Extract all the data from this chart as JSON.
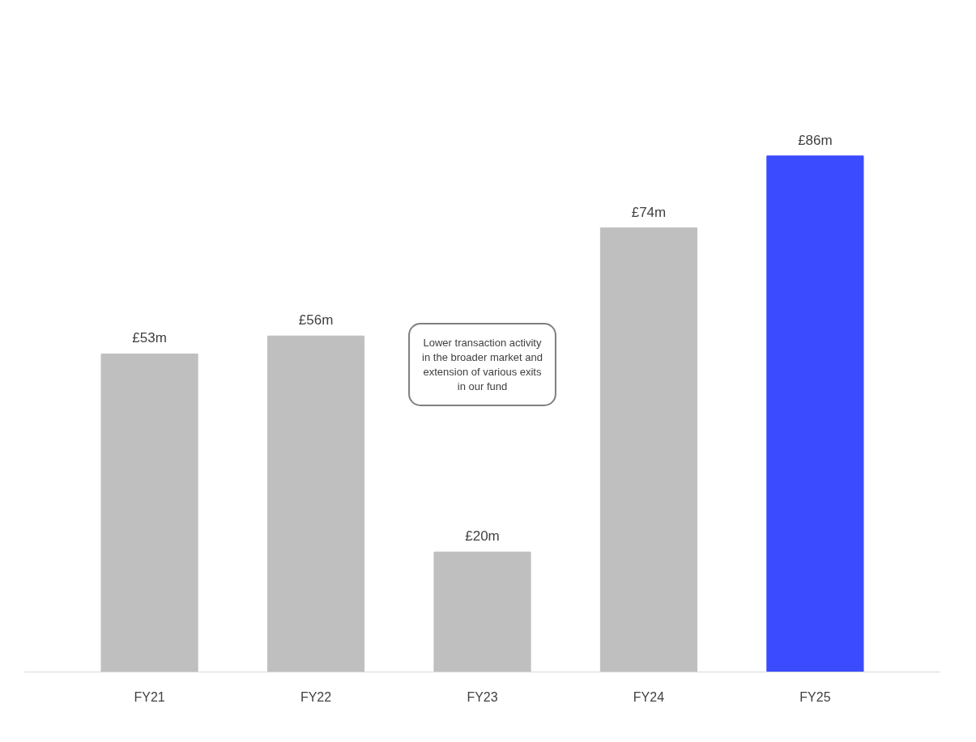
{
  "chart_data": {
    "type": "bar",
    "categories": [
      "FY21",
      "FY22",
      "FY23",
      "FY24",
      "FY25"
    ],
    "values": [
      53,
      56,
      20,
      74,
      86
    ],
    "colors": [
      "#bfbfbf",
      "#bfbfbf",
      "#bfbfbf",
      "#bfbfbf",
      "#3b4bff"
    ],
    "value_labels": [
      "£53m",
      "£56m",
      "£20m",
      "£74m",
      "£86m"
    ],
    "annotations": [
      "Lower transaction activity in the broader market and extension of various exits in our fund"
    ],
    "grid": false
  }
}
